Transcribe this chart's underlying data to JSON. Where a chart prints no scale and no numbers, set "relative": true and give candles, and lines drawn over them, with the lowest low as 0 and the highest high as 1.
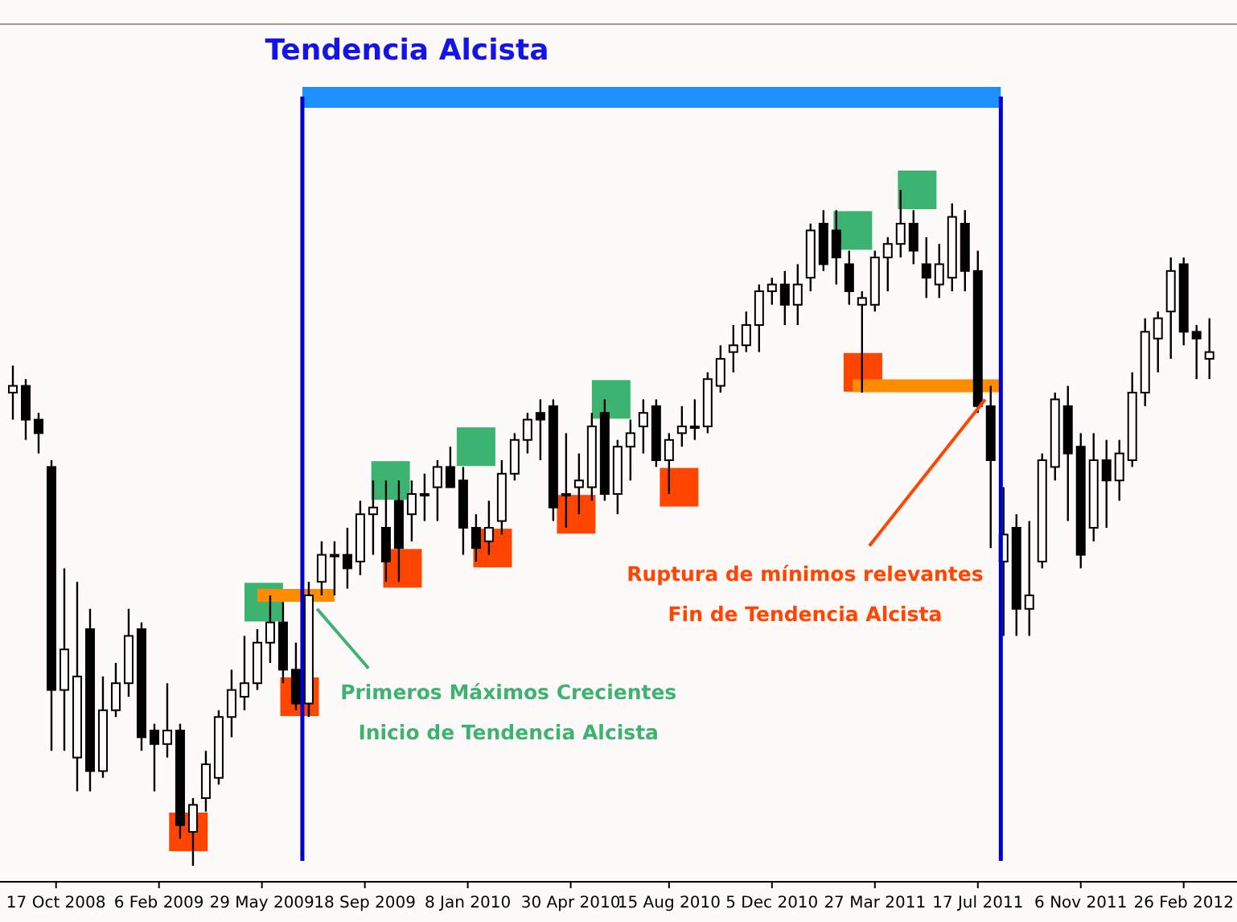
{
  "chart_data": {
    "type": "candlestick",
    "title": "Tendencia Alcista",
    "relative": true,
    "tick_labels": "x",
    "xlim": [
      "2008-08-17",
      "2012-04-24"
    ],
    "xticks": [
      {
        "value": "2008-10-17",
        "label": "17 Oct 2008"
      },
      {
        "value": "2009-02-06",
        "label": "6 Feb 2009"
      },
      {
        "value": "2009-05-29",
        "label": "29 May 2009"
      },
      {
        "value": "2009-09-18",
        "label": "18 Sep 2009"
      },
      {
        "value": "2010-01-08",
        "label": "8 Jan 2010"
      },
      {
        "value": "2010-04-30",
        "label": "30 Apr 2010"
      },
      {
        "value": "2010-08-15",
        "label": "15 Aug 2010"
      },
      {
        "value": "2010-12-05",
        "label": "5 Dec 2010"
      },
      {
        "value": "2011-03-27",
        "label": "27 Mar 2011"
      },
      {
        "value": "2011-07-17",
        "label": "17 Jul 2011"
      },
      {
        "value": "2011-11-06",
        "label": "6 Nov 2011"
      },
      {
        "value": "2012-02-26",
        "label": "26 Feb 2012"
      }
    ],
    "x": [
      "2008-08-31",
      "2008-09-14",
      "2008-09-28",
      "2008-10-12",
      "2008-10-26",
      "2008-11-09",
      "2008-11-23",
      "2008-12-07",
      "2008-12-21",
      "2009-01-04",
      "2009-01-18",
      "2009-02-01",
      "2009-02-15",
      "2009-03-01",
      "2009-03-15",
      "2009-03-29",
      "2009-04-12",
      "2009-04-26",
      "2009-05-10",
      "2009-05-24",
      "2009-06-07",
      "2009-06-21",
      "2009-07-05",
      "2009-07-19",
      "2009-08-02",
      "2009-08-16",
      "2009-08-30",
      "2009-09-13",
      "2009-09-27",
      "2009-10-11",
      "2009-10-25",
      "2009-11-08",
      "2009-11-22",
      "2009-12-06",
      "2009-12-20",
      "2010-01-03",
      "2010-01-17",
      "2010-01-31",
      "2010-02-14",
      "2010-02-28",
      "2010-03-14",
      "2010-03-28",
      "2010-04-11",
      "2010-04-25",
      "2010-05-09",
      "2010-05-23",
      "2010-06-06",
      "2010-06-20",
      "2010-07-04",
      "2010-07-18",
      "2010-08-01",
      "2010-08-15",
      "2010-08-29",
      "2010-09-12",
      "2010-09-26",
      "2010-10-10",
      "2010-10-24",
      "2010-11-07",
      "2010-11-21",
      "2010-12-05",
      "2010-12-19",
      "2011-01-02",
      "2011-01-16",
      "2011-01-30",
      "2011-02-13",
      "2011-02-27",
      "2011-03-13",
      "2011-03-27",
      "2011-04-10",
      "2011-04-24",
      "2011-05-08",
      "2011-05-22",
      "2011-06-05",
      "2011-06-19",
      "2011-07-03",
      "2011-07-17",
      "2011-07-31",
      "2011-08-14",
      "2011-08-28",
      "2011-09-11",
      "2011-09-25",
      "2011-10-09",
      "2011-10-23",
      "2011-11-06",
      "2011-11-20",
      "2011-12-04",
      "2011-12-18",
      "2012-01-01",
      "2012-01-15",
      "2012-01-29",
      "2012-02-12",
      "2012-02-26",
      "2012-03-11",
      "2012-03-25"
    ],
    "ohlc": [
      [
        0.7,
        0.74,
        0.66,
        0.71
      ],
      [
        0.71,
        0.72,
        0.63,
        0.66
      ],
      [
        0.66,
        0.67,
        0.61,
        0.64
      ],
      [
        0.59,
        0.6,
        0.17,
        0.26
      ],
      [
        0.26,
        0.44,
        0.17,
        0.32
      ],
      [
        0.16,
        0.42,
        0.11,
        0.28
      ],
      [
        0.35,
        0.38,
        0.11,
        0.14
      ],
      [
        0.14,
        0.28,
        0.13,
        0.23
      ],
      [
        0.23,
        0.3,
        0.22,
        0.27
      ],
      [
        0.27,
        0.38,
        0.25,
        0.34
      ],
      [
        0.35,
        0.36,
        0.17,
        0.19
      ],
      [
        0.2,
        0.21,
        0.11,
        0.18
      ],
      [
        0.18,
        0.27,
        0.16,
        0.2
      ],
      [
        0.2,
        0.21,
        0.04,
        0.06
      ],
      [
        0.05,
        0.1,
        0,
        0.09
      ],
      [
        0.1,
        0.17,
        0.08,
        0.15
      ],
      [
        0.13,
        0.23,
        0.12,
        0.22
      ],
      [
        0.22,
        0.29,
        0.19,
        0.26
      ],
      [
        0.25,
        0.34,
        0.23,
        0.27
      ],
      [
        0.27,
        0.35,
        0.26,
        0.33
      ],
      [
        0.33,
        0.4,
        0.3,
        0.36
      ],
      [
        0.36,
        0.39,
        0.27,
        0.29
      ],
      [
        0.29,
        0.33,
        0.23,
        0.24
      ],
      [
        0.24,
        0.42,
        0.22,
        0.4
      ],
      [
        0.42,
        0.48,
        0.4,
        0.46
      ],
      [
        0.46,
        0.48,
        0.4,
        0.46
      ],
      [
        0.46,
        0.5,
        0.41,
        0.44
      ],
      [
        0.45,
        0.54,
        0.43,
        0.52
      ],
      [
        0.52,
        0.57,
        0.46,
        0.53
      ],
      [
        0.5,
        0.57,
        0.42,
        0.45
      ],
      [
        0.54,
        0.57,
        0.42,
        0.47
      ],
      [
        0.52,
        0.57,
        0.48,
        0.55
      ],
      [
        0.55,
        0.58,
        0.51,
        0.55
      ],
      [
        0.56,
        0.6,
        0.51,
        0.59
      ],
      [
        0.59,
        0.62,
        0.56,
        0.56
      ],
      [
        0.57,
        0.59,
        0.46,
        0.5
      ],
      [
        0.5,
        0.52,
        0.45,
        0.47
      ],
      [
        0.48,
        0.54,
        0.46,
        0.5
      ],
      [
        0.51,
        0.6,
        0.49,
        0.58
      ],
      [
        0.58,
        0.64,
        0.57,
        0.63
      ],
      [
        0.63,
        0.67,
        0.61,
        0.66
      ],
      [
        0.67,
        0.69,
        0.6,
        0.66
      ],
      [
        0.68,
        0.69,
        0.51,
        0.53
      ],
      [
        0.55,
        0.64,
        0.5,
        0.55
      ],
      [
        0.56,
        0.61,
        0.52,
        0.57
      ],
      [
        0.56,
        0.67,
        0.54,
        0.65
      ],
      [
        0.67,
        0.69,
        0.54,
        0.55
      ],
      [
        0.55,
        0.63,
        0.52,
        0.62
      ],
      [
        0.62,
        0.66,
        0.57,
        0.64
      ],
      [
        0.65,
        0.69,
        0.61,
        0.67
      ],
      [
        0.68,
        0.69,
        0.59,
        0.6
      ],
      [
        0.6,
        0.64,
        0.55,
        0.63
      ],
      [
        0.64,
        0.68,
        0.62,
        0.65
      ],
      [
        0.65,
        0.69,
        0.63,
        0.65
      ],
      [
        0.65,
        0.73,
        0.64,
        0.72
      ],
      [
        0.71,
        0.77,
        0.7,
        0.75
      ],
      [
        0.76,
        0.8,
        0.73,
        0.77
      ],
      [
        0.77,
        0.82,
        0.76,
        0.8
      ],
      [
        0.8,
        0.86,
        0.76,
        0.85
      ],
      [
        0.85,
        0.87,
        0.83,
        0.86
      ],
      [
        0.86,
        0.88,
        0.8,
        0.83
      ],
      [
        0.83,
        0.89,
        0.8,
        0.86
      ],
      [
        0.87,
        0.95,
        0.85,
        0.94
      ],
      [
        0.95,
        0.97,
        0.88,
        0.89
      ],
      [
        0.94,
        0.97,
        0.86,
        0.9
      ],
      [
        0.89,
        0.91,
        0.83,
        0.85
      ],
      [
        0.83,
        0.85,
        0.7,
        0.84
      ],
      [
        0.83,
        0.91,
        0.82,
        0.9
      ],
      [
        0.9,
        0.93,
        0.85,
        0.92
      ],
      [
        0.92,
        1,
        0.9,
        0.95
      ],
      [
        0.95,
        0.97,
        0.89,
        0.91
      ],
      [
        0.89,
        0.93,
        0.84,
        0.87
      ],
      [
        0.86,
        0.92,
        0.84,
        0.89
      ],
      [
        0.87,
        0.98,
        0.85,
        0.96
      ],
      [
        0.95,
        0.97,
        0.85,
        0.88
      ],
      [
        0.88,
        0.91,
        0.67,
        0.68
      ],
      [
        0.68,
        0.71,
        0.47,
        0.6
      ],
      [
        0.45,
        0.56,
        0.34,
        0.49
      ],
      [
        0.5,
        0.52,
        0.34,
        0.38
      ],
      [
        0.38,
        0.51,
        0.34,
        0.4
      ],
      [
        0.45,
        0.61,
        0.44,
        0.6
      ],
      [
        0.59,
        0.7,
        0.57,
        0.69
      ],
      [
        0.68,
        0.71,
        0.51,
        0.61
      ],
      [
        0.62,
        0.64,
        0.44,
        0.46
      ],
      [
        0.5,
        0.64,
        0.48,
        0.6
      ],
      [
        0.6,
        0.63,
        0.5,
        0.57
      ],
      [
        0.57,
        0.63,
        0.54,
        0.61
      ],
      [
        0.6,
        0.73,
        0.59,
        0.7
      ],
      [
        0.7,
        0.81,
        0.68,
        0.79
      ],
      [
        0.78,
        0.82,
        0.73,
        0.81
      ],
      [
        0.82,
        0.9,
        0.75,
        0.88
      ],
      [
        0.89,
        0.9,
        0.77,
        0.79
      ],
      [
        0.79,
        0.8,
        0.72,
        0.78
      ],
      [
        0.75,
        0.81,
        0.72,
        0.76
      ]
    ],
    "series": [
      {
        "type": "scatter",
        "marker": "square",
        "color": "#3cb371",
        "x": [
          "2009-05-31",
          "2009-10-16",
          "2010-01-17",
          "2010-06-13",
          "2011-03-03",
          "2011-05-12"
        ],
        "values": [
          0.39,
          0.57,
          0.62,
          0.69,
          0.94,
          1
        ]
      },
      {
        "type": "scatter",
        "marker": "square",
        "color": "#ff4500",
        "x": [
          "2009-03-10",
          "2009-07-09",
          "2009-10-29",
          "2010-02-04",
          "2010-05-06",
          "2010-08-26",
          "2011-03-14"
        ],
        "values": [
          0.05,
          0.25,
          0.44,
          0.47,
          0.52,
          0.56,
          0.73
        ]
      },
      {
        "type": "line",
        "color": "#ff8c00",
        "x": [
          "2009-05-24",
          "2009-08-16"
        ],
        "values": [
          0.4,
          0.4
        ]
      },
      {
        "type": "line",
        "color": "#ff8c00",
        "x": [
          "2011-03-03",
          "2011-08-11"
        ],
        "values": [
          0.71,
          0.71
        ]
      }
    ],
    "ref_lines": [
      {
        "axis": "x",
        "value": "2009-07-12",
        "color": "#0000cc"
      },
      {
        "axis": "x",
        "value": "2011-08-11",
        "color": "#0000cc"
      }
    ],
    "annotations": [
      {
        "text": "Primeros Máximos Crecientes",
        "x": "2009-07-28",
        "y": 0.38
      },
      "Inicio de Tendencia Alcista",
      {
        "text": "Ruptura de mínimos relevantes",
        "x": "2011-07-25",
        "y": 0.69
      },
      "Fin de Tendencia Alcista"
    ]
  }
}
